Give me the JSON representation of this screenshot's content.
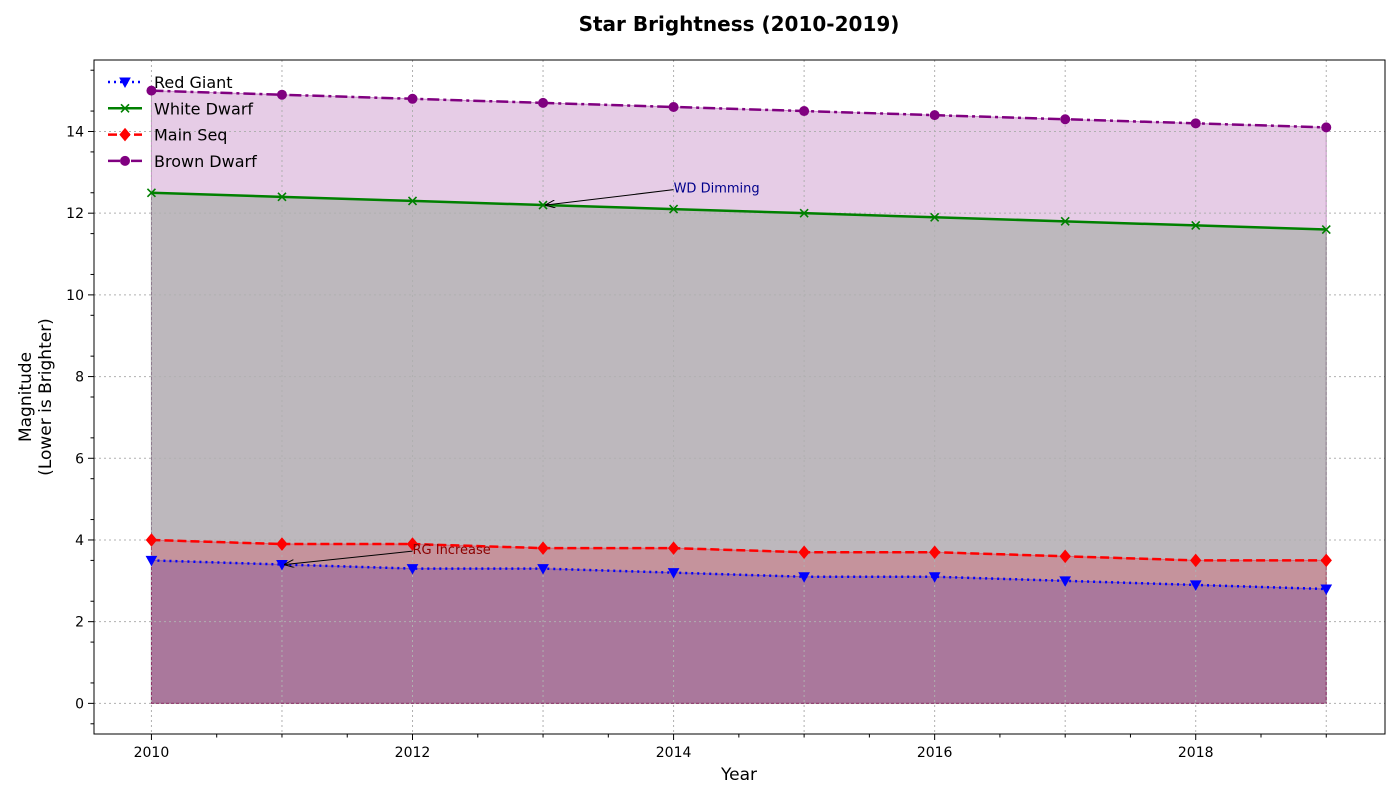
{
  "chart_data": {
    "type": "line",
    "title": "Star Brightness (2010-2019)",
    "xlabel": "Year",
    "ylabel_lines": [
      "Magnitude",
      "(Lower is Brighter)"
    ],
    "x": [
      2010,
      2011,
      2012,
      2013,
      2014,
      2015,
      2016,
      2017,
      2018,
      2019
    ],
    "xlim": [
      2009.56,
      2019.45
    ],
    "ylim": [
      -0.75,
      15.75
    ],
    "x_ticks": [
      2010,
      2012,
      2014,
      2016,
      2018
    ],
    "y_ticks": [
      0,
      2,
      4,
      6,
      8,
      10,
      12,
      14
    ],
    "grid": true,
    "legend_position": "top-left",
    "series": [
      {
        "name": "Red Giant",
        "color": "#0000ff",
        "fill": "#0000ff",
        "linestyle": "dotted",
        "marker": "triangle-down",
        "values": [
          3.5,
          3.4,
          3.3,
          3.3,
          3.2,
          3.1,
          3.1,
          3.0,
          2.9,
          2.8
        ]
      },
      {
        "name": "White Dwarf",
        "color": "#008000",
        "fill": "#008000",
        "linestyle": "solid",
        "marker": "x",
        "values": [
          12.5,
          12.4,
          12.3,
          12.2,
          12.1,
          12.0,
          11.9,
          11.8,
          11.7,
          11.6
        ]
      },
      {
        "name": "Main Seq",
        "color": "#ff0000",
        "fill": "#ff0000",
        "linestyle": "dashed",
        "marker": "diamond",
        "values": [
          4.0,
          3.9,
          3.9,
          3.8,
          3.8,
          3.7,
          3.7,
          3.6,
          3.5,
          3.5
        ]
      },
      {
        "name": "Brown Dwarf",
        "color": "#800080",
        "fill": "#800080",
        "linestyle": "dashdot",
        "marker": "circle",
        "values": [
          15.0,
          14.9,
          14.8,
          14.7,
          14.6,
          14.5,
          14.4,
          14.3,
          14.2,
          14.1
        ]
      }
    ],
    "annotations": [
      {
        "text": "WD Dimming",
        "color": "#00008b",
        "point": [
          2013,
          12.2
        ],
        "text_at": [
          2014,
          12.6
        ]
      },
      {
        "text": "RG Increase",
        "color": "#8b0000",
        "point": [
          2011,
          3.4
        ],
        "text_at": [
          2012,
          3.75
        ]
      }
    ]
  }
}
